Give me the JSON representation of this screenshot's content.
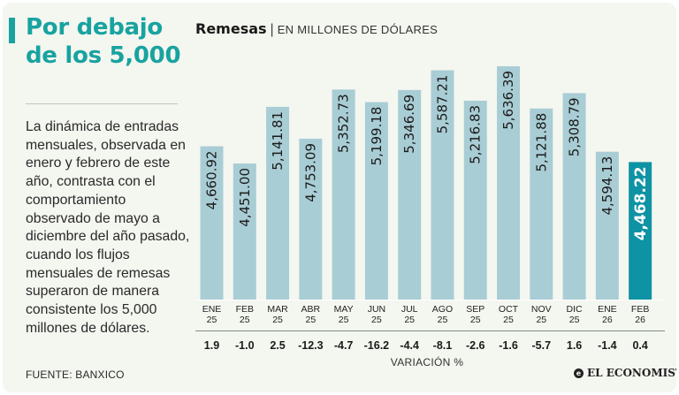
{
  "headline": "Por debajo de los 5,000",
  "body_text": "La dinámica de entradas mensuales, observada en enero y febrero de este año, contrasta con el comportamiento observado de mayo a diciembre del año pasado, cuando los flujos mensuales de remesas superaron de manera consistente los 5,000 millones de dólares.",
  "source": "FUENTE: BANXICO",
  "publisher": "EL ECONOMISTA",
  "colors": {
    "accent": "#18a3a0",
    "bar": "#a9cdd5",
    "highlight_bar": "#0e93a4",
    "text": "#2a2a2a"
  },
  "chart_data": {
    "type": "bar",
    "title": "Remesas",
    "subtitle": "EN MILLONES DE DÓLARES",
    "categories": [
      {
        "month": "ENE",
        "year": "25"
      },
      {
        "month": "FEB",
        "year": "25"
      },
      {
        "month": "MAR",
        "year": "25"
      },
      {
        "month": "ABR",
        "year": "25"
      },
      {
        "month": "MAY",
        "year": "25"
      },
      {
        "month": "JUN",
        "year": "25"
      },
      {
        "month": "JUL",
        "year": "25"
      },
      {
        "month": "AGO",
        "year": "25"
      },
      {
        "month": "SEP",
        "year": "25"
      },
      {
        "month": "OCT",
        "year": "25"
      },
      {
        "month": "NOV",
        "year": "25"
      },
      {
        "month": "DIC",
        "year": "25"
      },
      {
        "month": "ENE",
        "year": "26"
      },
      {
        "month": "FEB",
        "year": "26"
      }
    ],
    "values": [
      4660.92,
      4451.0,
      5141.81,
      4753.09,
      5352.73,
      5199.18,
      5346.69,
      5587.21,
      5216.83,
      5636.39,
      5121.88,
      5308.79,
      4594.13,
      4468.22
    ],
    "value_labels": [
      "4,660.92",
      "4,451.00",
      "5,141.81",
      "4,753.09",
      "5,352.73",
      "5,199.18",
      "5,346.69",
      "5,587.21",
      "5,216.83",
      "5,636.39",
      "5,121.88",
      "5,308.79",
      "4,594.13",
      "4,468.22"
    ],
    "highlight_index": 13,
    "variation": [
      "1.9",
      "-1.0",
      "2.5",
      "-12.3",
      "-4.7",
      "-16.2",
      "-4.4",
      "-8.1",
      "-2.6",
      "-1.6",
      "-5.7",
      "1.6",
      "-1.4",
      "0.4"
    ],
    "variation_label": "VARIACIÓN %",
    "grid": false,
    "legend": "none"
  }
}
